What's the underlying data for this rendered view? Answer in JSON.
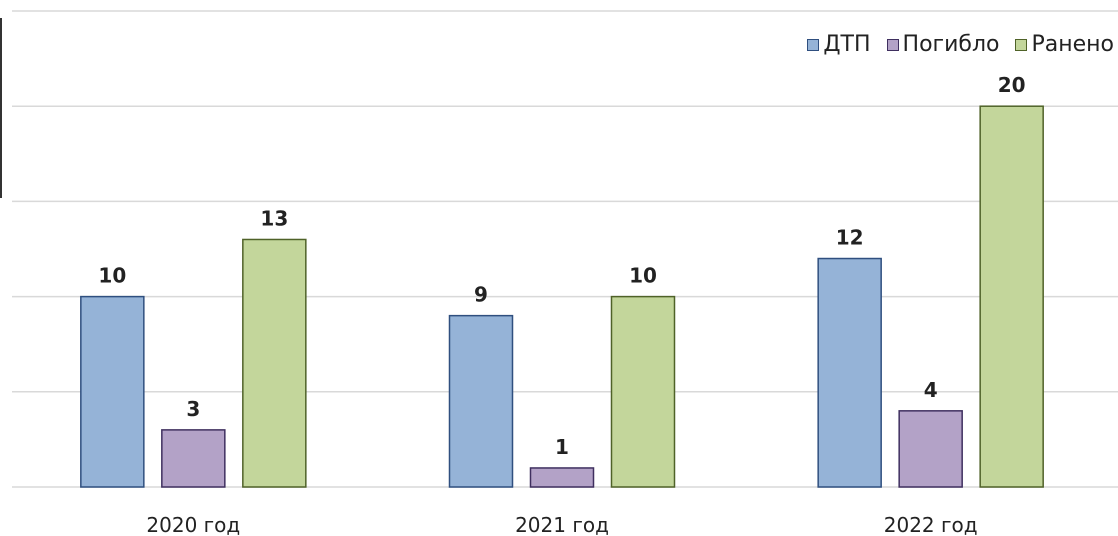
{
  "chart_data": {
    "type": "bar",
    "categories": [
      "2020 год",
      "2021 год",
      "2022 год"
    ],
    "series": [
      {
        "name": "ДТП",
        "values": [
          10,
          9,
          12
        ],
        "color": "#95b3d7",
        "stroke": "#2f4f7f"
      },
      {
        "name": "Погибло",
        "values": [
          3,
          1,
          4
        ],
        "color": "#b3a2c7",
        "stroke": "#3f2f5f"
      },
      {
        "name": "Ранено",
        "values": [
          13,
          10,
          20
        ],
        "color": "#c3d69b",
        "stroke": "#4f6228"
      }
    ],
    "ylim": [
      0,
      25
    ],
    "grid": true,
    "legend": "top-right",
    "title": "",
    "xlabel": "",
    "ylabel": ""
  }
}
